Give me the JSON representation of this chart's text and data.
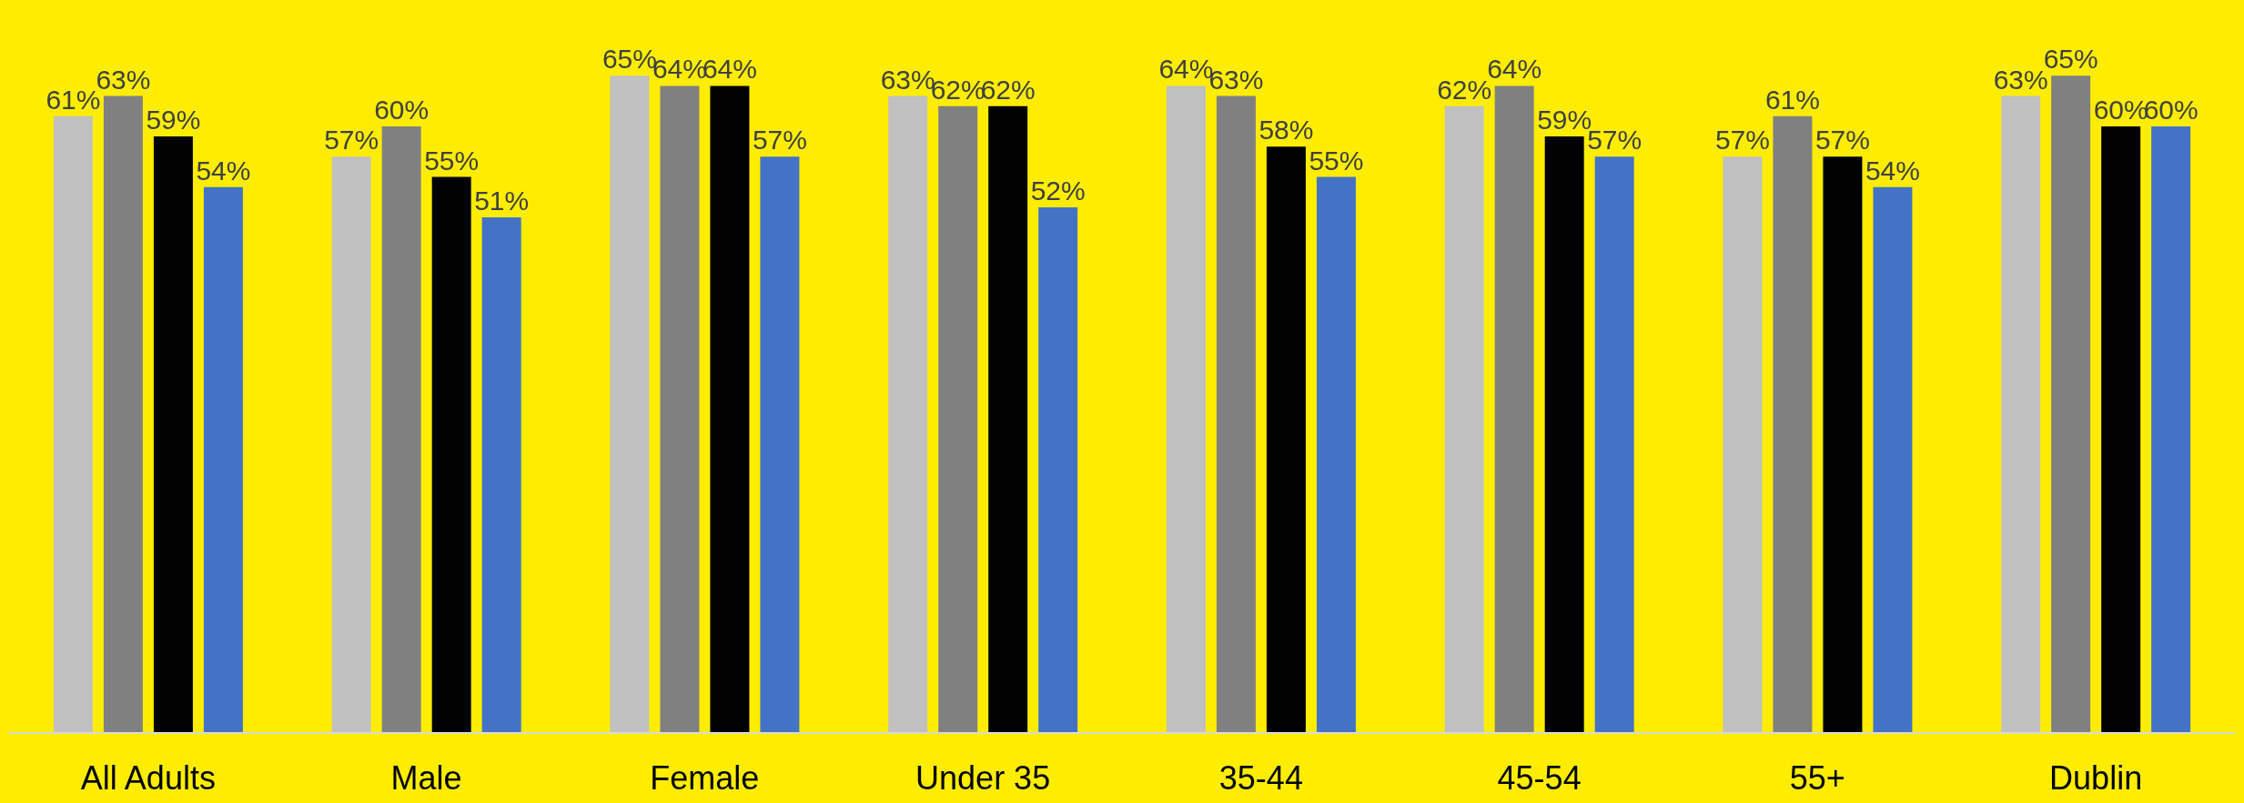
{
  "chart_data": {
    "type": "bar",
    "categories": [
      "All Adults",
      "Male",
      "Female",
      "Under 35",
      "35-44",
      "45-54",
      "55+",
      "Dublin"
    ],
    "series": [
      {
        "color": "#c0c0c0",
        "values": [
          61,
          57,
          65,
          63,
          64,
          62,
          57,
          63
        ],
        "value_labels": [
          "61%",
          "57%",
          "65%",
          "63%",
          "64%",
          "62%",
          "57%",
          "63%"
        ]
      },
      {
        "color": "#808080",
        "values": [
          63,
          60,
          64,
          62,
          63,
          64,
          61,
          65
        ],
        "value_labels": [
          "63%",
          "60%",
          "64%",
          "62%",
          "63%",
          "64%",
          "61%",
          "65%"
        ]
      },
      {
        "color": "#000000",
        "values": [
          59,
          55,
          64,
          62,
          58,
          59,
          57,
          60
        ],
        "value_labels": [
          "59%",
          "55%",
          "64%",
          "62%",
          "58%",
          "59%",
          "57%",
          "60%"
        ]
      },
      {
        "color": "#4472c4",
        "values": [
          54,
          51,
          57,
          52,
          55,
          57,
          54,
          60
        ],
        "value_labels": [
          "54%",
          "51%",
          "57%",
          "52%",
          "55%",
          "57%",
          "54%",
          "60%"
        ]
      }
    ],
    "grid": false,
    "legend": false
  }
}
